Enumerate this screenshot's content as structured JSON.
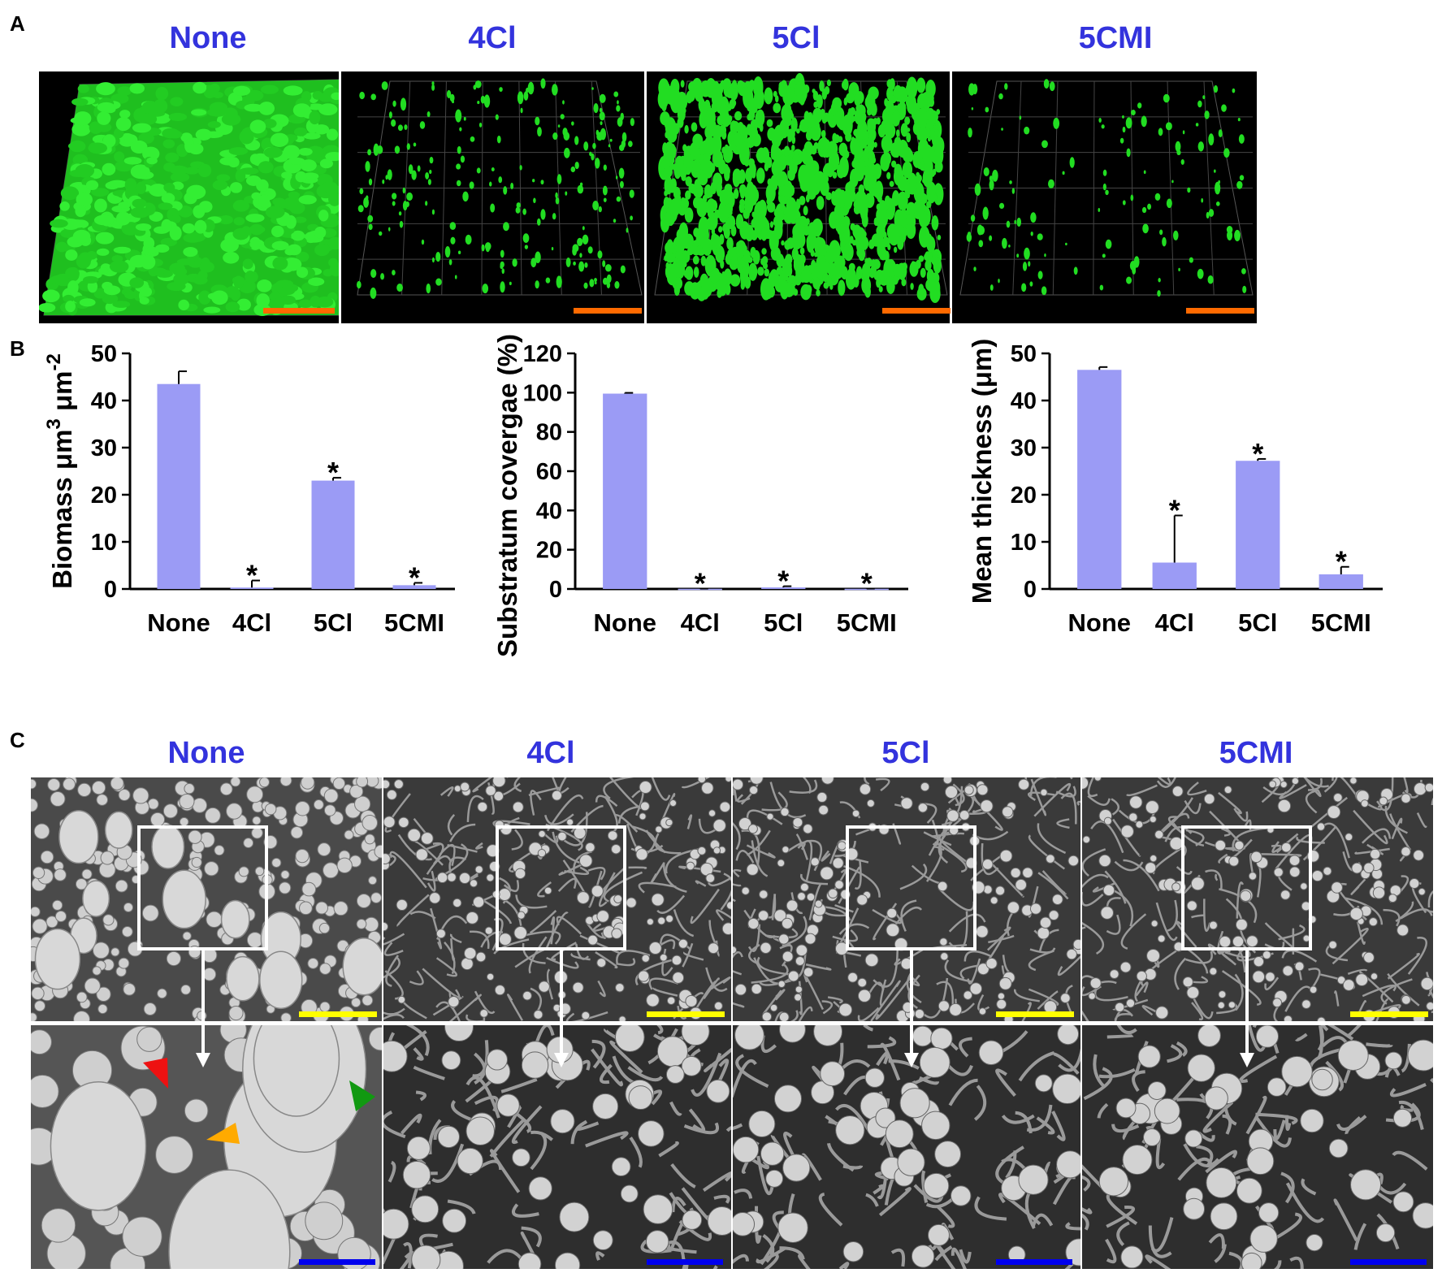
{
  "panels": {
    "A": {
      "letter": "A",
      "conditions": [
        "None",
        "4Cl",
        "5Cl",
        "5CMI"
      ]
    },
    "B": {
      "letter": "B"
    },
    "C": {
      "letter": "C",
      "conditions": [
        "None",
        "4Cl",
        "5Cl",
        "5CMI"
      ]
    }
  },
  "colors": {
    "label_blue": "#3333dd",
    "bar_fill": "#9b9bf5",
    "biofilm_green": "#22dd22",
    "scalebar_orange": "#ff6a00",
    "scalebar_yellow": "#ffff00",
    "scalebar_blue": "#0000ee",
    "arrow_red": "#ee1111",
    "arrow_orange": "#ffaa00",
    "arrow_green": "#119911"
  },
  "chart_data": [
    {
      "type": "bar",
      "categories": [
        "None",
        "4Cl",
        "5Cl",
        "5CMI"
      ],
      "values": [
        43.5,
        0.3,
        23.0,
        0.8
      ],
      "errors": [
        2.7,
        1.5,
        0.6,
        0.5
      ],
      "significance": [
        "",
        "*",
        "*",
        "*"
      ],
      "ylabel_main": "Biomass μm",
      "ylabel_sup1": "3",
      "ylabel_mid": " μm",
      "ylabel_sup2": "-2",
      "yticks": [
        0,
        10,
        20,
        30,
        40,
        50
      ],
      "ylim": [
        0,
        50
      ],
      "grid": false
    },
    {
      "type": "bar",
      "categories": [
        "None",
        "4Cl",
        "5Cl",
        "5CMI"
      ],
      "values": [
        99.5,
        0.1,
        0.8,
        0.1
      ],
      "errors": [
        0.4,
        0.1,
        0.6,
        0.1
      ],
      "significance": [
        "",
        "*",
        "*",
        "*"
      ],
      "ylabel": "Substratum covergae (%)",
      "yticks": [
        0,
        20,
        40,
        60,
        80,
        100,
        120
      ],
      "ylim": [
        0,
        120
      ],
      "grid": false
    },
    {
      "type": "bar",
      "categories": [
        "None",
        "4Cl",
        "5Cl",
        "5CMI"
      ],
      "values": [
        46.5,
        5.6,
        27.2,
        3.1
      ],
      "errors": [
        0.6,
        10.0,
        0.4,
        1.6
      ],
      "significance": [
        "",
        "*",
        "*",
        "*"
      ],
      "ylabel": "Mean thickness (μm)",
      "yticks": [
        0,
        10,
        20,
        30,
        40,
        50
      ],
      "ylim": [
        0,
        50
      ],
      "grid": false
    }
  ]
}
